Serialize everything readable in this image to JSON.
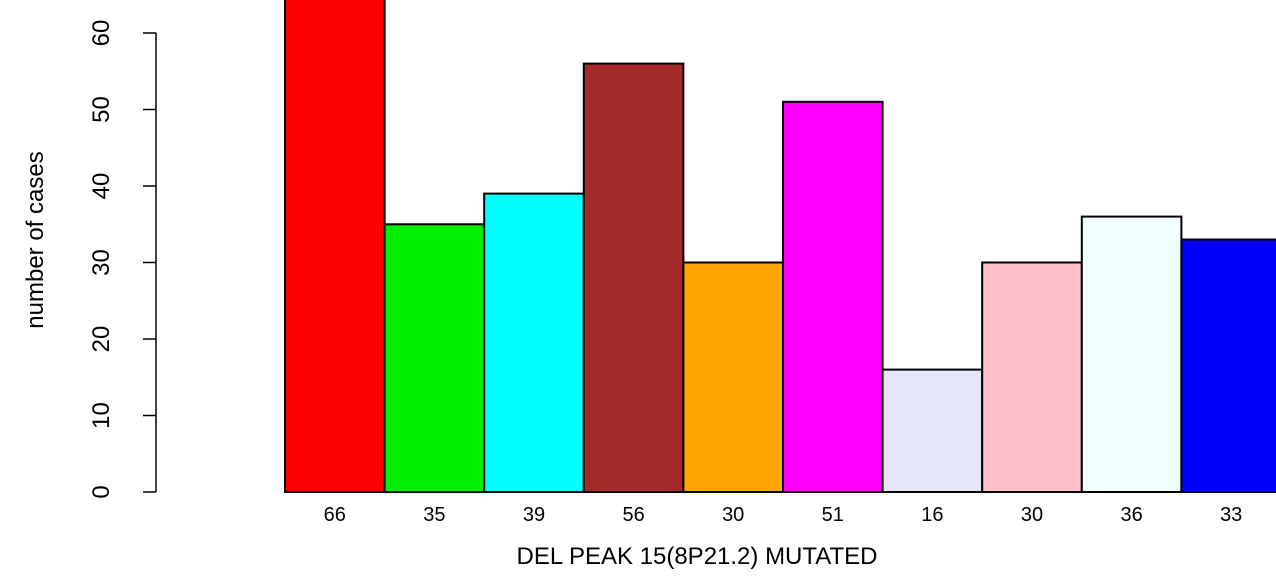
{
  "chart_data": {
    "type": "bar",
    "title": "",
    "xlabel": "DEL PEAK 15(8P21.2) MUTATED",
    "ylabel": "number of cases",
    "ylim": [
      0,
      66
    ],
    "yticks": [
      0,
      10,
      20,
      30,
      40,
      50,
      60
    ],
    "grid": false,
    "legend": "none",
    "categories": [
      "66",
      "35",
      "39",
      "56",
      "30",
      "51",
      "16",
      "30",
      "36",
      "33"
    ],
    "values": [
      66,
      35,
      39,
      56,
      30,
      51,
      16,
      30,
      36,
      33
    ],
    "colors": [
      "#FF0000",
      "#00EE00",
      "#00FFFF",
      "#A52A2A",
      "#FFA500",
      "#FF00FF",
      "#E6E6FA",
      "#FFC0CB",
      "#F0FFFF",
      "#0000FF"
    ]
  }
}
